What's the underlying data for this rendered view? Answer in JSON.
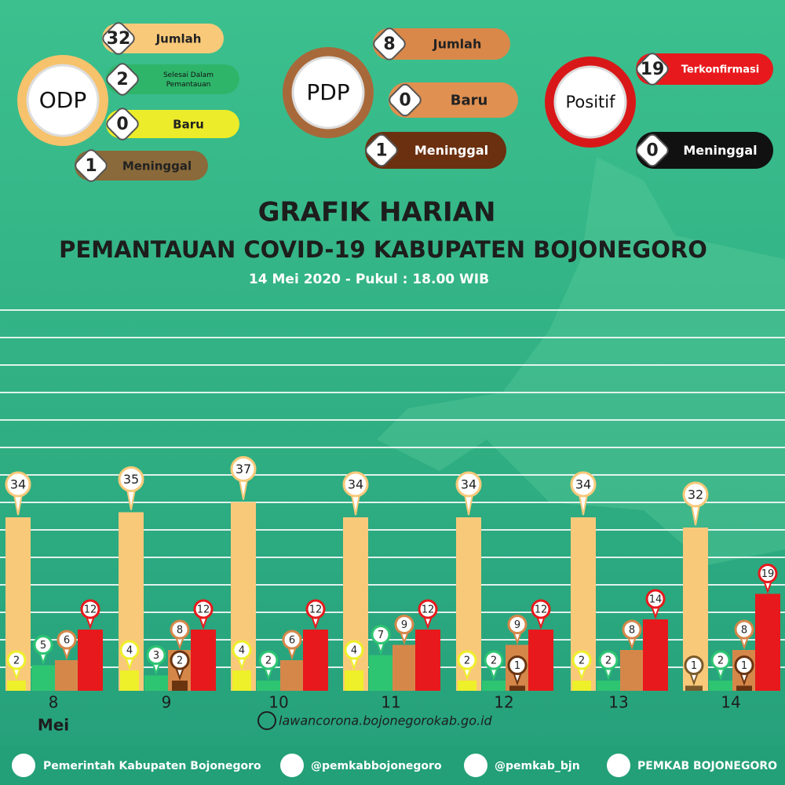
{
  "summary": {
    "odp": {
      "label": "ODP",
      "items": [
        {
          "value": 32,
          "label": "Jumlah"
        },
        {
          "value": 2,
          "label": "Selesai Dalam Pemantauan"
        },
        {
          "value": 0,
          "label": "Baru"
        },
        {
          "value": 1,
          "label": "Meninggal"
        }
      ]
    },
    "pdp": {
      "label": "PDP",
      "items": [
        {
          "value": 8,
          "label": "Jumlah"
        },
        {
          "value": 0,
          "label": "Baru"
        },
        {
          "value": 1,
          "label": "Meninggal"
        }
      ]
    },
    "positif": {
      "label": "Positif",
      "items": [
        {
          "value": 19,
          "label": "Terkonfirmasi"
        },
        {
          "value": 0,
          "label": "Meninggal"
        }
      ]
    }
  },
  "chart_data": {
    "type": "bar",
    "title": "GRAFIK HARIAN",
    "subtitle": "PEMANTAUAN COVID-19 KABUPATEN BOJONEGORO",
    "date": "14 Mei 2020 - Pukul : 18.00 WIB",
    "categories": [
      "8",
      "9",
      "10",
      "11",
      "12",
      "13",
      "14"
    ],
    "month": "Mei",
    "ylim": [
      0,
      40
    ],
    "grid": true,
    "series": [
      {
        "color": "#f9c97a",
        "values": [
          34,
          35,
          37,
          34,
          34,
          34,
          32
        ]
      },
      {
        "color": "#eef02a",
        "values": [
          2,
          4,
          4,
          4,
          2,
          2,
          null
        ]
      },
      {
        "color": "#2ec572",
        "values": [
          5,
          3,
          2,
          7,
          2,
          2,
          2
        ]
      },
      {
        "color": "#d5874a",
        "values": [
          6,
          8,
          6,
          9,
          9,
          8,
          8
        ]
      },
      {
        "color": "#6b3410",
        "values": [
          null,
          2,
          null,
          null,
          1,
          null,
          1
        ]
      },
      {
        "color": "#7a5a2a",
        "values": [
          null,
          null,
          null,
          null,
          null,
          null,
          1
        ]
      },
      {
        "color": "#e8191c",
        "values": [
          12,
          12,
          12,
          12,
          12,
          14,
          19
        ]
      }
    ]
  },
  "footer": {
    "website": "lawancorona.bojonegorokab.go.id",
    "facebook": "Pemerintah Kabupaten Bojonegoro",
    "instagram": "@pemkabbojonegoro",
    "twitter": "@pemkab_bjn",
    "youtube": "PEMKAB BOJONEGORO"
  }
}
